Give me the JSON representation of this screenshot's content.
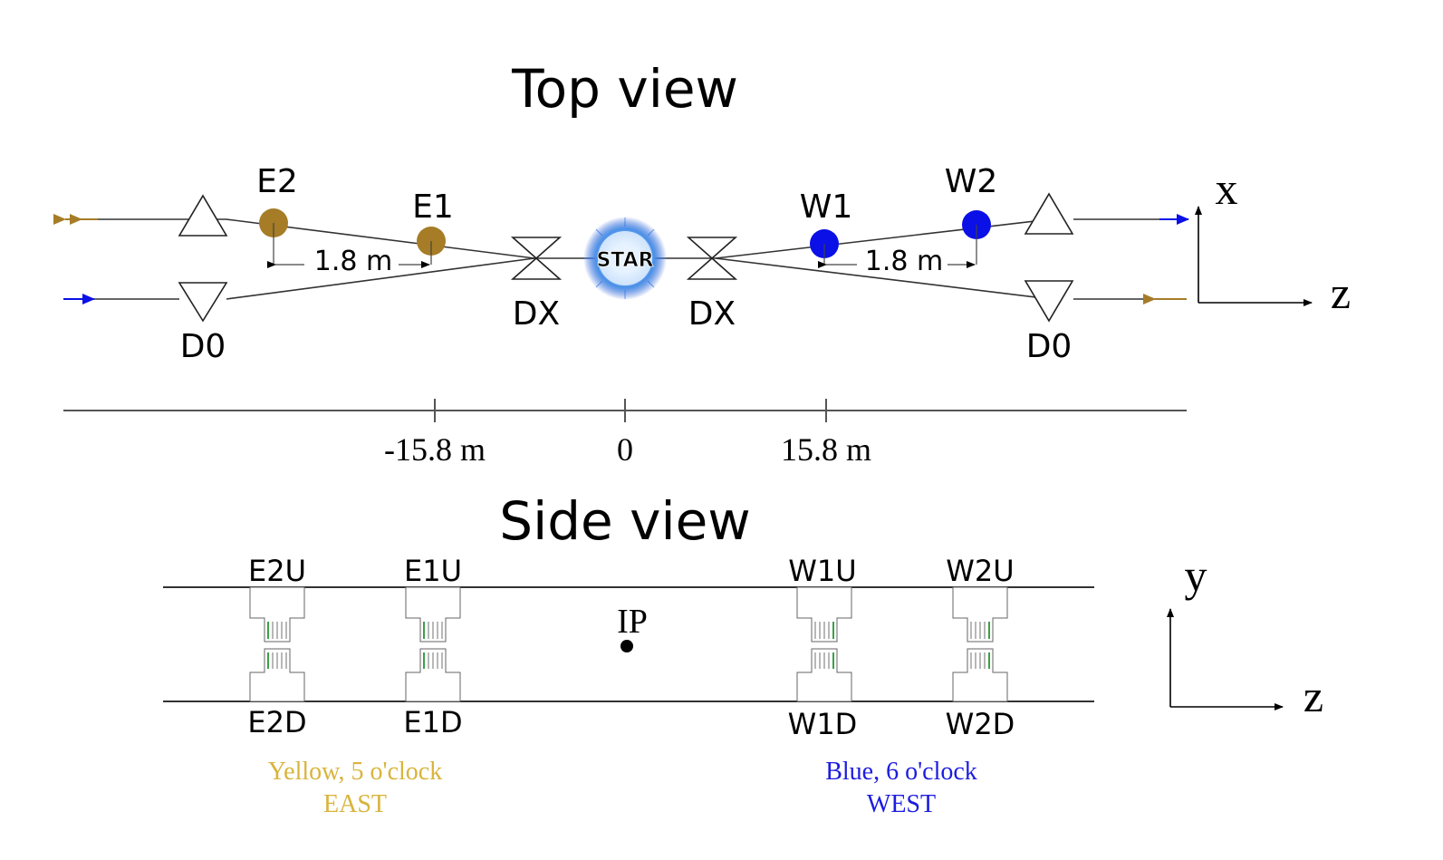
{
  "top_view": {
    "title": "Top view",
    "axis_x": "x",
    "axis_z": "z",
    "stations": {
      "e2": "E2",
      "e1": "E1",
      "w1": "W1",
      "w2": "W2"
    },
    "magnets": {
      "dx_east": "DX",
      "dx_west": "DX",
      "d0_east": "D0",
      "d0_west": "D0"
    },
    "center_label": "STAR",
    "east_spacing": "1.8 m",
    "west_spacing": "1.8 m"
  },
  "scale": {
    "left": "-15.8 m",
    "center": "0",
    "right": "15.8 m"
  },
  "side_view": {
    "title": "Side view",
    "axis_y": "y",
    "axis_z": "z",
    "ip_label": "IP",
    "pots": {
      "e2u": "E2U",
      "e1u": "E1U",
      "w1u": "W1U",
      "w2u": "W2U",
      "e2d": "E2D",
      "e1d": "E1D",
      "w1d": "W1D",
      "w2d": "W2D"
    }
  },
  "legend": {
    "east_beam": "Yellow, 5 o'clock",
    "east_side": "EAST",
    "west_beam": "Blue, 6 o'clock",
    "west_side": "WEST"
  },
  "colors": {
    "yellow_beam": "#a67c27",
    "blue_beam": "#0a10e6",
    "east_text": "#d9b43c",
    "west_text": "#1c1ce0"
  }
}
